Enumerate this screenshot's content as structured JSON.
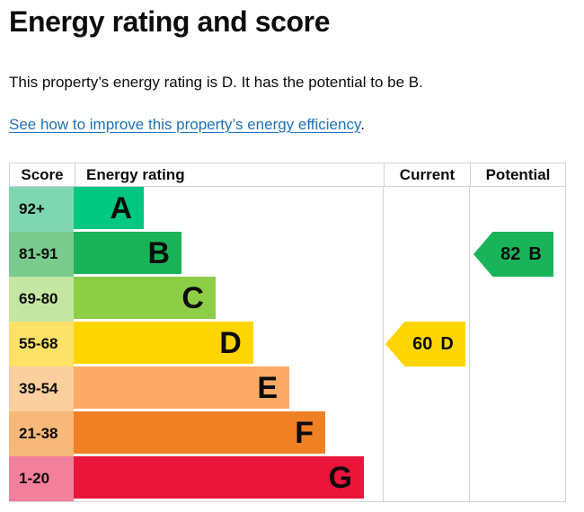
{
  "page": {
    "title": "Energy rating and score",
    "summary": "This property’s energy rating is D. It has the potential to be B.",
    "improve_link": {
      "text": "See how to improve this property’s energy efficiency",
      "suffix": "."
    }
  },
  "colors": {
    "text": "#0b0c0c",
    "link": "#1d70b8",
    "table_border": "#d0d3d4"
  },
  "chart_data": {
    "type": "bar",
    "title": "Energy rating and score",
    "orientation": "horizontal",
    "columns": [
      "Score",
      "Energy rating",
      "Current",
      "Potential"
    ],
    "bands": [
      {
        "score": "92+",
        "rating": "A",
        "color": "#00c781",
        "tint": "#7fd7b2",
        "width_pct": 22.7
      },
      {
        "score": "81-91",
        "rating": "B",
        "color": "#19b459",
        "tint": "#79cb8e",
        "width_pct": 34.9
      },
      {
        "score": "69-80",
        "rating": "C",
        "color": "#8dce46",
        "tint": "#c5e6a2",
        "width_pct": 45.9
      },
      {
        "score": "55-68",
        "rating": "D",
        "color": "#ffd500",
        "tint": "#fde267",
        "width_pct": 58.1
      },
      {
        "score": "39-54",
        "rating": "E",
        "color": "#fcaa65",
        "tint": "#fccf9e",
        "width_pct": 69.8
      },
      {
        "score": "21-38",
        "rating": "F",
        "color": "#ef8023",
        "tint": "#f7b879",
        "width_pct": 81.4
      },
      {
        "score": "1-20",
        "rating": "G",
        "color": "#e9153b",
        "tint": "#f2809c",
        "width_pct": 93.9
      }
    ],
    "current": {
      "label": "Current",
      "score": "60",
      "band": "D",
      "color": "#ffd500"
    },
    "potential": {
      "label": "Potential",
      "score": "82",
      "band": "B",
      "color": "#19b459"
    }
  }
}
